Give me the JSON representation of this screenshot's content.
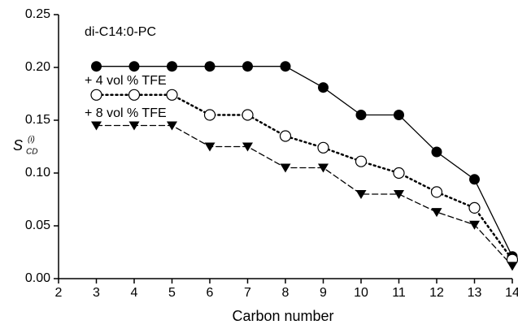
{
  "chart_data": {
    "type": "line",
    "xlabel": "Carbon number",
    "ylabel": "S",
    "ylabel_sub": "CD",
    "ylabel_sup": "(i)",
    "x": [
      3,
      4,
      5,
      6,
      7,
      8,
      9,
      10,
      11,
      12,
      13,
      14
    ],
    "series": [
      {
        "name": "di-C14:0-PC",
        "color": "#000000",
        "line_style": "solid",
        "marker": "filled-circle",
        "values": [
          0.201,
          0.201,
          0.201,
          0.201,
          0.201,
          0.201,
          0.181,
          0.155,
          0.155,
          0.12,
          0.094,
          0.021
        ]
      },
      {
        "name": "+ 4 vol % TFE",
        "color": "#000000",
        "line_style": "dotted",
        "marker": "open-circle",
        "values": [
          0.174,
          0.174,
          0.174,
          0.155,
          0.155,
          0.135,
          0.124,
          0.111,
          0.1,
          0.082,
          0.067,
          0.018
        ]
      },
      {
        "name": "+ 8 vol % TFE",
        "color": "#000000",
        "line_style": "dashed",
        "marker": "filled-triangle-down",
        "values": [
          0.145,
          0.145,
          0.145,
          0.125,
          0.125,
          0.105,
          0.105,
          0.08,
          0.08,
          0.063,
          0.051,
          0.012
        ]
      }
    ],
    "xlim": [
      2,
      14
    ],
    "xticks": [
      2,
      3,
      4,
      5,
      6,
      7,
      8,
      9,
      10,
      11,
      12,
      13,
      14
    ],
    "ylim": [
      0,
      0.25
    ],
    "yticks": [
      {
        "value": 0,
        "label": "0.00"
      },
      0.05,
      {
        "value": 0.1,
        "label": "0.10"
      },
      0.15,
      {
        "value": 0.2,
        "label": "0.20"
      },
      0.25
    ],
    "grid": false
  }
}
